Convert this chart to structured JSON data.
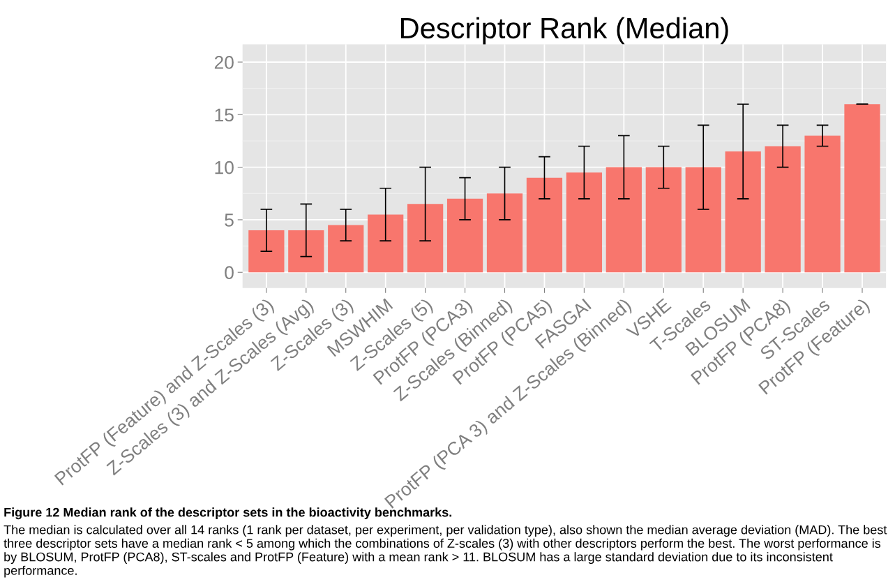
{
  "chart_data": {
    "type": "bar",
    "title": "Descriptor Rank (Median)",
    "categories": [
      "ProtFP (Feature) and Z-Scales (3)",
      "Z-Scales (3) and Z-Scales (Avg)",
      "Z-Scales (3)",
      "MSWHIM",
      "Z-Scales (5)",
      "ProtFP (PCA3)",
      "Z-Scales (Binned)",
      "ProtFP (PCA5)",
      "FASGAI",
      "ProtFP (PCA 3) and Z-Scales (Binned)",
      "VSHE",
      "T-Scales",
      "BLOSUM",
      "ProtFP (PCA8)",
      "ST-Scales",
      "ProtFP (Feature)"
    ],
    "values": [
      4,
      4,
      4.5,
      5.5,
      6.5,
      7,
      7.5,
      9,
      9.5,
      10,
      10,
      10,
      11.5,
      12,
      13,
      16
    ],
    "errors": [
      [
        2,
        6
      ],
      [
        1.5,
        6.5
      ],
      [
        3,
        6
      ],
      [
        3,
        8
      ],
      [
        3,
        10
      ],
      [
        5,
        9
      ],
      [
        5,
        10
      ],
      [
        7,
        11
      ],
      [
        7,
        12
      ],
      [
        7,
        13
      ],
      [
        8,
        12
      ],
      [
        6,
        14
      ],
      [
        7,
        16
      ],
      [
        10,
        14
      ],
      [
        12,
        14
      ],
      [
        16,
        16
      ]
    ],
    "color": "#f8766d",
    "ylim": [
      -1.5,
      21.7
    ],
    "yticks": [
      0,
      5,
      10,
      15,
      20
    ],
    "grid": true,
    "annotations": [
      "Figure 12 Median rank of the descriptor sets in the bioactivity benchmarks.",
      "The median is calculated over all 14 ranks (1 rank per dataset, per experiment, per validation type), also shown the median average deviation (MAD). The best three descriptor sets have a median rank < 5 among which the combinations of Z-scales (3) with other descriptors perform the best. The worst performance is by BLOSUM, ProtFP (PCA8), ST-scales and ProtFP (Feature) with a mean rank > 11. BLOSUM has a large standard deviation due to its inconsistent performance."
    ]
  }
}
